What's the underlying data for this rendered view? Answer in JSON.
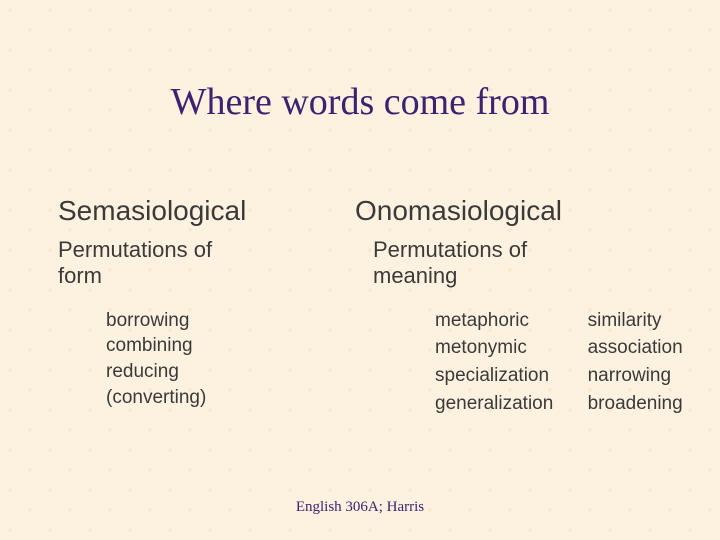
{
  "title": "Where words come from",
  "left": {
    "heading": "Semasiological",
    "sub_line1": "Permutations of",
    "sub_line2": "form",
    "items": [
      "borrowing",
      "combining",
      "reducing",
      "(converting)"
    ]
  },
  "right": {
    "heading": "Onomasiological",
    "sub_line1": "Permutations of",
    "sub_line2": "meaning",
    "pairs": [
      {
        "term": "metaphoric",
        "gloss": "similarity"
      },
      {
        "term": "metonymic",
        "gloss": "association"
      },
      {
        "term": "specialization",
        "gloss": "narrowing"
      },
      {
        "term": "generalization",
        "gloss": "broadening"
      }
    ]
  },
  "footer": "English 306A; Harris",
  "colors": {
    "background": "#fdf2e0",
    "title_text": "#3b2370",
    "body_text": "#3a3a3a",
    "footer_text": "#3b2370"
  },
  "fonts": {
    "title_family": "Comic Sans MS",
    "title_size_pt": 29,
    "heading_size_pt": 21,
    "sub_size_pt": 17,
    "body_size_pt": 14,
    "footer_size_pt": 11
  }
}
